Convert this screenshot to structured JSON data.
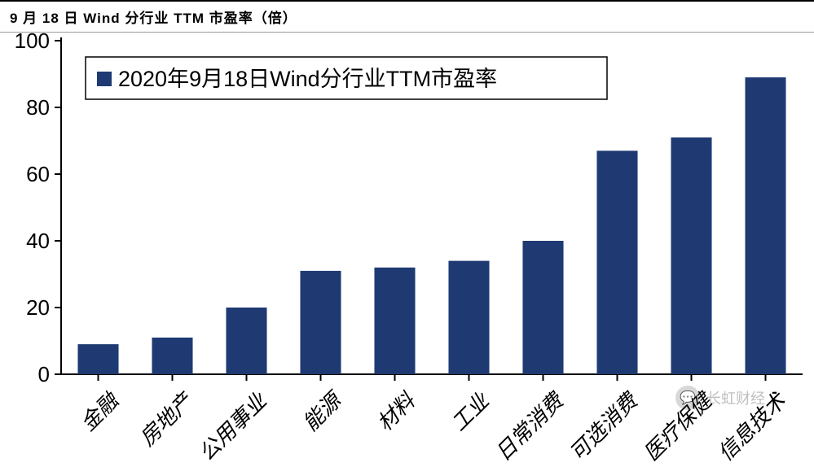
{
  "title": "9 月 18 日 Wind 分行业 TTM 市盈率（倍）",
  "legend": {
    "label": "2020年9月18日Wind分行业TTM市盈率",
    "marker_color": "#1f3a73"
  },
  "chart": {
    "type": "bar",
    "categories": [
      "金融",
      "房地产",
      "公用事业",
      "能源",
      "材料",
      "工业",
      "日常消费",
      "可选消费",
      "医疗保健",
      "信息技术"
    ],
    "values": [
      9,
      11,
      20,
      31,
      32,
      34,
      40,
      67,
      71,
      89
    ],
    "bar_color": "#1f3a73",
    "bar_width": 0.55,
    "ylim": [
      0,
      100
    ],
    "ytick_step": 20,
    "yticks": [
      0,
      20,
      40,
      60,
      80,
      100
    ],
    "axis_line_color": "#000000",
    "axis_line_width": 2,
    "tick_font_size": 26,
    "legend_font_size": 27,
    "background_color": "#ffffff",
    "label_rotation_deg": -45
  },
  "watermark": {
    "icon_glyph": "💬",
    "text": "长虹财经"
  }
}
